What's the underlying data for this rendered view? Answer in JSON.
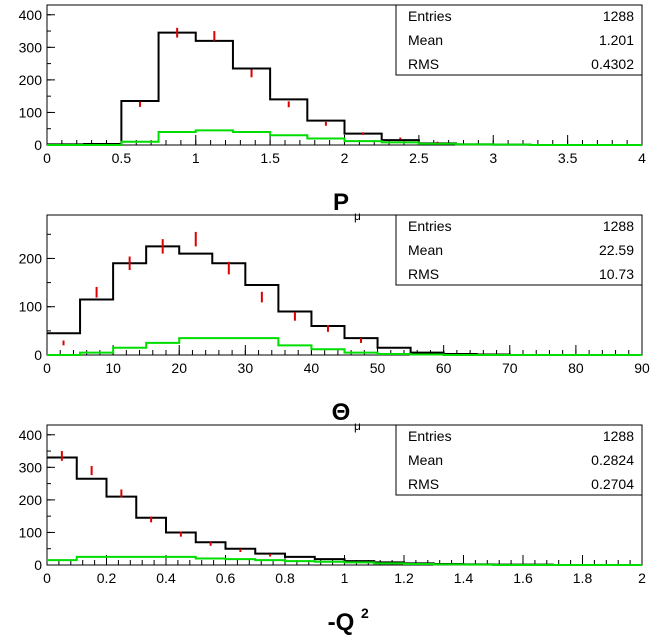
{
  "chart_data": [
    {
      "type": "histogram",
      "xlabel": "P",
      "xlabel_sub": "μ",
      "xlim": [
        0,
        4
      ],
      "ylim": [
        0,
        430
      ],
      "x_ticks": [
        "0",
        "0.5",
        "1",
        "1.5",
        "2",
        "2.5",
        "3",
        "3.5",
        "4"
      ],
      "y_ticks": [
        "0",
        "100",
        "200",
        "300",
        "400"
      ],
      "stats": [
        {
          "label": "Entries",
          "value": "1288"
        },
        {
          "label": "Mean",
          "value": "1.201"
        },
        {
          "label": "RMS",
          "value": "0.4302"
        }
      ],
      "series": [
        {
          "kind": "histogram",
          "color": "#000000",
          "edges": [
            0,
            0.25,
            0.5,
            0.75,
            1.0,
            1.25,
            1.5,
            1.75,
            2.0,
            2.25,
            2.5,
            2.75,
            3.0,
            3.25,
            3.5,
            3.75,
            4.0
          ],
          "values": [
            2,
            3,
            135,
            345,
            320,
            235,
            140,
            75,
            35,
            15,
            5,
            2,
            1,
            0,
            0,
            0
          ]
        },
        {
          "kind": "histogram",
          "color": "#00dd00",
          "edges": [
            0,
            0.25,
            0.5,
            0.75,
            1.0,
            1.25,
            1.5,
            1.75,
            2.0,
            2.25,
            2.5,
            2.75,
            3.0,
            3.25,
            3.5,
            3.75,
            4.0
          ],
          "values": [
            0,
            0,
            10,
            40,
            45,
            40,
            30,
            20,
            12,
            8,
            4,
            2,
            1,
            0,
            0,
            0
          ]
        },
        {
          "kind": "errorbars",
          "color": "#dd0000",
          "x": [
            0.625,
            0.875,
            1.125,
            1.375,
            1.625,
            1.875,
            2.125,
            2.375,
            2.625
          ],
          "y": [
            125,
            345,
            335,
            220,
            125,
            65,
            35,
            20,
            8
          ],
          "err": [
            8,
            15,
            15,
            12,
            9,
            6,
            4,
            3,
            2
          ]
        }
      ]
    },
    {
      "type": "histogram",
      "xlabel": "Θ",
      "xlabel_sub": "μ",
      "xlim": [
        0,
        90
      ],
      "ylim": [
        0,
        290
      ],
      "x_ticks": [
        "0",
        "10",
        "20",
        "30",
        "40",
        "50",
        "60",
        "70",
        "80",
        "90"
      ],
      "y_ticks": [
        "0",
        "100",
        "200"
      ],
      "stats": [
        {
          "label": "Entries",
          "value": "1288"
        },
        {
          "label": "Mean",
          "value": "22.59"
        },
        {
          "label": "RMS",
          "value": "10.73"
        }
      ],
      "series": [
        {
          "kind": "histogram",
          "color": "#000000",
          "edges": [
            0,
            5,
            10,
            15,
            20,
            25,
            30,
            35,
            40,
            45,
            50,
            55,
            60,
            65,
            70,
            75,
            80,
            85,
            90
          ],
          "values": [
            45,
            115,
            190,
            225,
            210,
            190,
            145,
            90,
            60,
            35,
            15,
            5,
            2,
            1,
            0,
            0,
            0,
            0
          ]
        },
        {
          "kind": "histogram",
          "color": "#00dd00",
          "edges": [
            0,
            5,
            10,
            15,
            20,
            25,
            30,
            35,
            40,
            45,
            50,
            55,
            60,
            65,
            70,
            75,
            80,
            85,
            90
          ],
          "values": [
            0,
            5,
            15,
            25,
            35,
            35,
            35,
            20,
            12,
            5,
            2,
            1,
            0,
            0,
            0,
            0,
            0,
            0
          ]
        },
        {
          "kind": "errorbars",
          "color": "#dd0000",
          "x": [
            2.5,
            7.5,
            12.5,
            17.5,
            22.5,
            27.5,
            32.5,
            37.5,
            42.5,
            47.5
          ],
          "y": [
            25,
            130,
            190,
            225,
            240,
            180,
            120,
            80,
            55,
            30
          ],
          "err": [
            5,
            11,
            14,
            15,
            15,
            13,
            11,
            9,
            7,
            5
          ]
        }
      ]
    },
    {
      "type": "histogram",
      "xlabel": "-Q",
      "xlabel_sup": "2",
      "xlim": [
        0,
        2
      ],
      "ylim": [
        0,
        430
      ],
      "x_ticks": [
        "0",
        "0.2",
        "0.4",
        "0.6",
        "0.8",
        "1",
        "1.2",
        "1.4",
        "1.6",
        "1.8",
        "2"
      ],
      "y_ticks": [
        "0",
        "100",
        "200",
        "300",
        "400"
      ],
      "stats": [
        {
          "label": "Entries",
          "value": "1288"
        },
        {
          "label": "Mean",
          "value": "0.2824"
        },
        {
          "label": "RMS",
          "value": "0.2704"
        }
      ],
      "series": [
        {
          "kind": "histogram",
          "color": "#000000",
          "edges": [
            0,
            0.1,
            0.2,
            0.3,
            0.4,
            0.5,
            0.6,
            0.7,
            0.8,
            0.9,
            1.0,
            1.1,
            1.2,
            1.3,
            1.4,
            1.5,
            1.6,
            1.7,
            1.8,
            1.9,
            2.0
          ],
          "values": [
            330,
            265,
            210,
            145,
            100,
            70,
            50,
            35,
            25,
            18,
            12,
            8,
            5,
            3,
            2,
            1,
            1,
            0,
            0,
            0
          ]
        },
        {
          "kind": "histogram",
          "color": "#00dd00",
          "edges": [
            0,
            0.1,
            0.2,
            0.3,
            0.4,
            0.5,
            0.6,
            0.7,
            0.8,
            0.9,
            1.0,
            1.1,
            1.2,
            1.3,
            1.4,
            1.5,
            1.6,
            1.7,
            1.8,
            1.9,
            2.0
          ],
          "values": [
            15,
            25,
            25,
            25,
            25,
            20,
            18,
            15,
            12,
            10,
            8,
            5,
            3,
            2,
            1,
            0,
            0,
            0,
            0,
            0
          ]
        },
        {
          "kind": "errorbars",
          "color": "#dd0000",
          "x": [
            0.05,
            0.15,
            0.25,
            0.35,
            0.45,
            0.55,
            0.65,
            0.75
          ],
          "y": [
            335,
            290,
            220,
            140,
            95,
            65,
            45,
            30
          ],
          "err": [
            15,
            14,
            12,
            9,
            8,
            6,
            5,
            4
          ]
        }
      ]
    }
  ]
}
